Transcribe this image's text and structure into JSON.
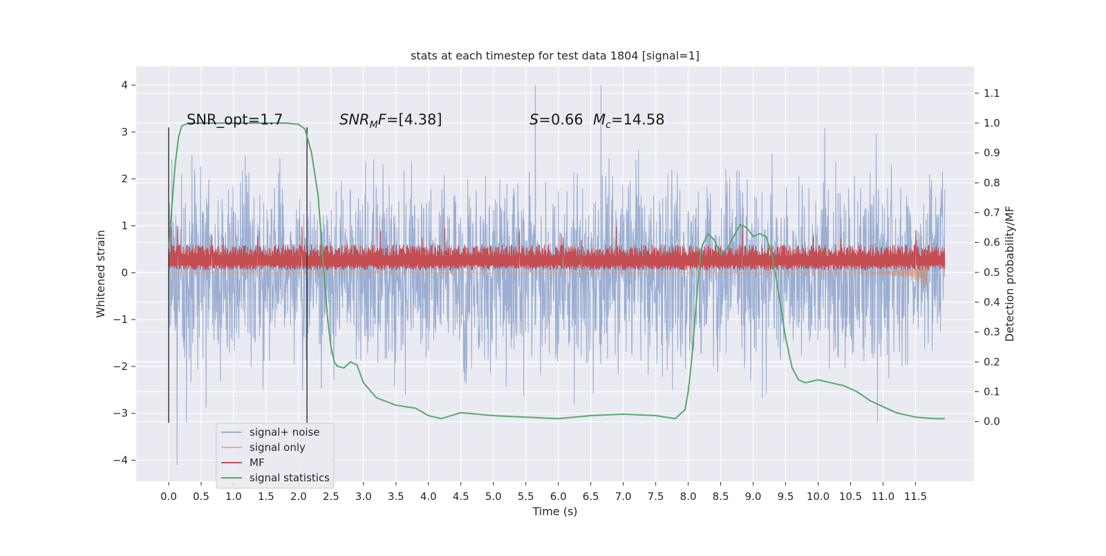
{
  "chart_data": {
    "type": "line",
    "title": "stats at each timestep for test data 1804 [signal=1]",
    "xlabel": "Time (s)",
    "ylabel": "Whitened strain",
    "ylabel_right": "Detection probability/MF",
    "xlim": [
      -0.5,
      12.4
    ],
    "ylim": [
      -4.45,
      4.4
    ],
    "ylim_right": [
      -0.2,
      1.19
    ],
    "x_ticks": [
      0.0,
      0.5,
      1.0,
      1.5,
      2.0,
      2.5,
      3.0,
      3.5,
      4.0,
      4.5,
      5.0,
      5.5,
      6.0,
      6.5,
      7.0,
      7.5,
      8.0,
      8.5,
      9.0,
      9.5,
      10.0,
      10.5,
      11.0,
      11.5
    ],
    "x_tick_labels": [
      "0.0",
      "0.5",
      "1.0",
      "1.5",
      "2.0",
      "2.5",
      "3.0",
      "3.5",
      "4.0",
      "4.5",
      "5.0",
      "5.5",
      "6.0",
      "6.5",
      "7.0",
      "7.5",
      "8.0",
      "8.5",
      "9.0",
      "9.5",
      "10.0",
      "10.5",
      "11.0",
      "11.5"
    ],
    "y_ticks": [
      -4,
      -3,
      -2,
      -1,
      0,
      1,
      2,
      3,
      4
    ],
    "y_tick_labels": [
      "−4",
      "−3",
      "−2",
      "−1",
      "0",
      "1",
      "2",
      "3",
      "4"
    ],
    "y_ticks_right": [
      0.0,
      0.1,
      0.2,
      0.3,
      0.4,
      0.5,
      0.6,
      0.7,
      0.8,
      0.9,
      1.0,
      1.1
    ],
    "y_tick_labels_right": [
      "0.0",
      "0.1",
      "0.2",
      "0.3",
      "0.4",
      "0.5",
      "0.6",
      "0.7",
      "0.8",
      "0.9",
      "1.0",
      "1.1"
    ],
    "grid": true,
    "legend_position": "bottom-left",
    "series": [
      {
        "name": "signal+ noise",
        "axis": "left",
        "color": "#4c72b0",
        "style": "dense-noise",
        "x_range": [
          0.0,
          11.95
        ],
        "envelope_typical": [
          -2.0,
          2.0
        ],
        "extremes": [
          -4.1,
          4.0
        ]
      },
      {
        "name": "signal only",
        "axis": "left",
        "color": "#dd8452",
        "style": "chirp",
        "x": [
          0.0,
          10.8,
          11.0,
          11.2,
          11.3,
          11.4,
          11.5,
          11.55,
          11.6,
          11.65,
          11.68
        ],
        "amplitude": [
          0.01,
          0.01,
          0.03,
          0.06,
          0.08,
          0.1,
          0.15,
          0.2,
          0.25,
          0.35,
          0.4
        ]
      },
      {
        "name": "MF",
        "axis": "left",
        "color": "#c44e52",
        "style": "dense-positive",
        "x_range": [
          0.0,
          11.95
        ],
        "envelope_typical": [
          0.05,
          0.6
        ],
        "extremes": [
          0.0,
          1.0
        ]
      },
      {
        "name": "signal statistics",
        "axis": "right",
        "color": "#55a868",
        "x": [
          0.0,
          0.05,
          0.1,
          0.15,
          0.2,
          0.3,
          0.5,
          1.0,
          1.5,
          1.8,
          2.0,
          2.1,
          2.2,
          2.3,
          2.35,
          2.4,
          2.45,
          2.5,
          2.55,
          2.6,
          2.7,
          2.8,
          2.9,
          3.0,
          3.2,
          3.5,
          3.8,
          4.0,
          4.2,
          4.5,
          5.0,
          5.5,
          6.0,
          6.5,
          7.0,
          7.5,
          7.8,
          7.95,
          8.0,
          8.05,
          8.1,
          8.15,
          8.2,
          8.3,
          8.4,
          8.5,
          8.6,
          8.7,
          8.8,
          8.9,
          9.0,
          9.1,
          9.2,
          9.3,
          9.4,
          9.5,
          9.6,
          9.7,
          9.8,
          9.9,
          10.0,
          10.2,
          10.4,
          10.6,
          10.8,
          11.0,
          11.2,
          11.5,
          11.8,
          11.95
        ],
        "y": [
          0.58,
          0.72,
          0.86,
          0.95,
          0.99,
          1.0,
          1.0,
          1.0,
          1.0,
          1.0,
          0.996,
          0.98,
          0.9,
          0.76,
          0.62,
          0.47,
          0.34,
          0.25,
          0.2,
          0.185,
          0.18,
          0.2,
          0.19,
          0.13,
          0.08,
          0.055,
          0.045,
          0.02,
          0.01,
          0.03,
          0.02,
          0.015,
          0.01,
          0.02,
          0.025,
          0.02,
          0.01,
          0.04,
          0.1,
          0.2,
          0.33,
          0.47,
          0.58,
          0.63,
          0.61,
          0.56,
          0.58,
          0.62,
          0.66,
          0.65,
          0.62,
          0.63,
          0.62,
          0.55,
          0.42,
          0.28,
          0.18,
          0.14,
          0.13,
          0.135,
          0.14,
          0.13,
          0.12,
          0.1,
          0.07,
          0.05,
          0.03,
          0.015,
          0.01,
          0.01
        ]
      }
    ],
    "vertical_markers": [
      {
        "x": 0.0,
        "y_range": [
          -3.2,
          3.1
        ]
      },
      {
        "x": 2.13,
        "y_range": [
          -3.2,
          3.1
        ]
      }
    ],
    "annotations": [
      {
        "prefix": "SNR_opt=",
        "value": "1.7"
      },
      {
        "prefix": "SNR",
        "subscript": "M",
        "suffix": "F=",
        "value": "[4.38]"
      },
      {
        "prefix": "S=",
        "value": "0.66"
      },
      {
        "prefix": "M",
        "subscript": "c",
        "suffix": "=",
        "value": "14.58"
      }
    ]
  }
}
